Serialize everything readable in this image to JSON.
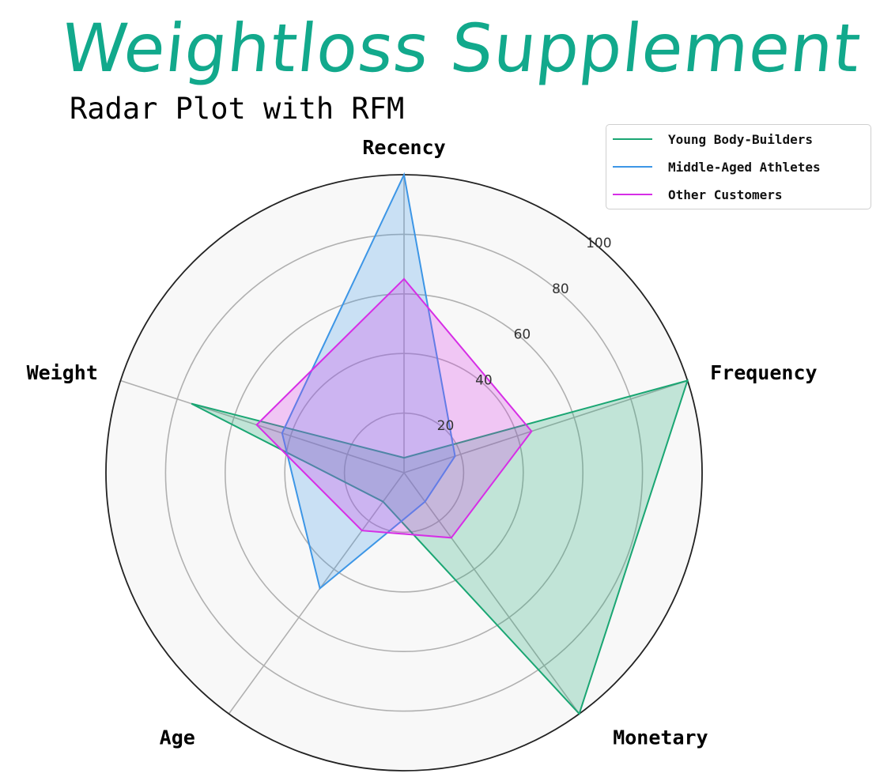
{
  "header": {
    "title": "Weightloss Supplement",
    "subtitle": "Radar Plot with RFM"
  },
  "chart_data": {
    "type": "radar",
    "axes": [
      "Recency",
      "Frequency",
      "Monetary",
      "Age",
      "Weight"
    ],
    "r_ticks": [
      "20",
      "40",
      "60",
      "80",
      "100"
    ],
    "rlim": [
      0,
      100
    ],
    "grid": true,
    "legend_position": "top-right",
    "series": [
      {
        "name": "Young Body-Builders",
        "values": [
          5,
          100,
          100,
          12,
          75
        ],
        "color": "#1aa673"
      },
      {
        "name": "Middle-Aged Athletes",
        "values": [
          100,
          18,
          12,
          48,
          43
        ],
        "color": "#3d96e6"
      },
      {
        "name": "Other Customers",
        "values": [
          65,
          45,
          27,
          24,
          52
        ],
        "color": "#d62ee6"
      }
    ]
  }
}
